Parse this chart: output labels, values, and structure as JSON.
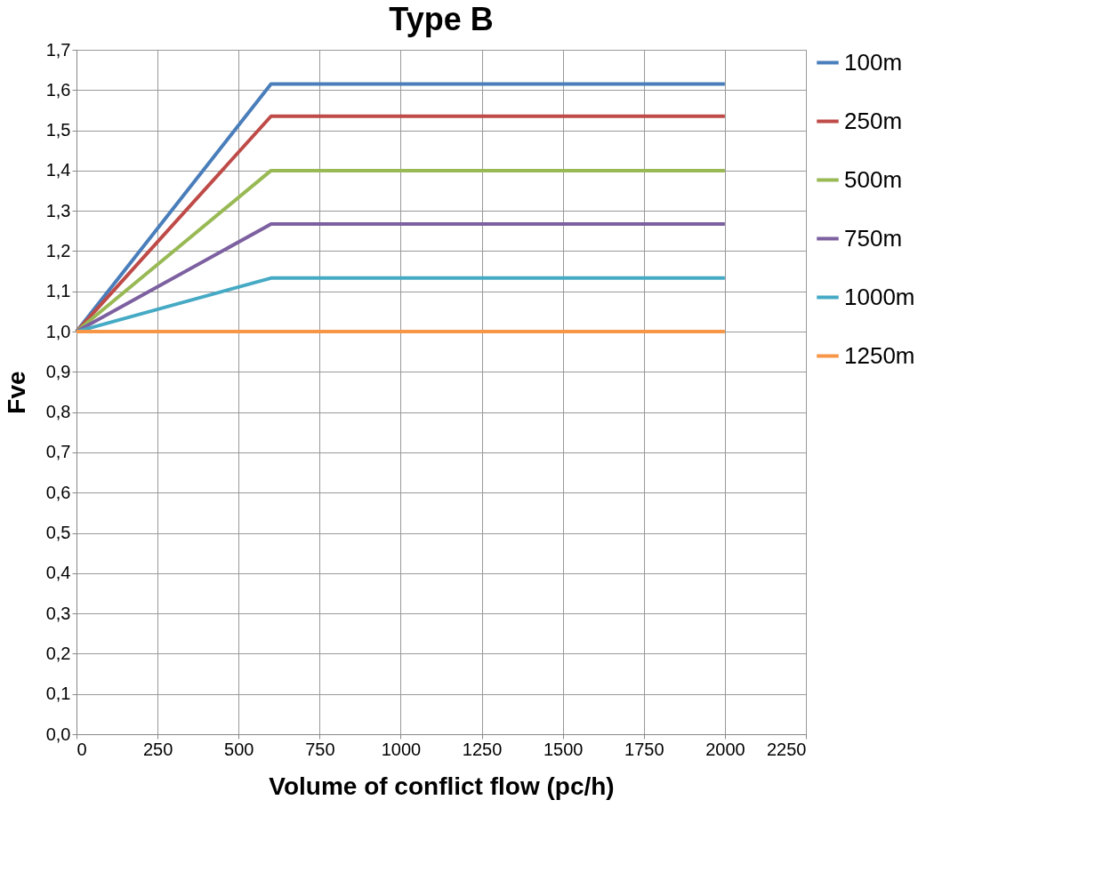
{
  "chart_data": {
    "type": "line",
    "title": "Type B",
    "xlabel": "Volume of conflict flow (pc/h)",
    "ylabel": "Fve",
    "xlim": [
      0,
      2250
    ],
    "xticks": [
      0,
      250,
      500,
      750,
      1000,
      1250,
      1500,
      1750,
      2000,
      2250
    ],
    "ylim": [
      0,
      1.7
    ],
    "yticks": [
      {
        "value": 0,
        "label": "0,0"
      },
      {
        "value": 0.1,
        "label": "0,1"
      },
      {
        "value": 0.2,
        "label": "0,2"
      },
      {
        "value": 0.3,
        "label": "0,3"
      },
      {
        "value": 0.4,
        "label": "0,4"
      },
      {
        "value": 0.5,
        "label": "0,5"
      },
      {
        "value": 0.6,
        "label": "0,6"
      },
      {
        "value": 0.7,
        "label": "0,7"
      },
      {
        "value": 0.8,
        "label": "0,8"
      },
      {
        "value": 0.9,
        "label": "0,9"
      },
      {
        "value": 1.0,
        "label": "1,0"
      },
      {
        "value": 1.1,
        "label": "1,1"
      },
      {
        "value": 1.2,
        "label": "1,2"
      },
      {
        "value": 1.3,
        "label": "1,3"
      },
      {
        "value": 1.4,
        "label": "1,4"
      },
      {
        "value": 1.5,
        "label": "1,5"
      },
      {
        "value": 1.6,
        "label": "1,6"
      },
      {
        "value": 1.7,
        "label": "1,7"
      }
    ],
    "x": [
      0,
      600,
      2000
    ],
    "series": [
      {
        "name": "100m",
        "color": "#4a7ebb",
        "values": [
          1.0,
          1.615,
          1.615
        ]
      },
      {
        "name": "250m",
        "color": "#be4b48",
        "values": [
          1.0,
          1.535,
          1.535
        ]
      },
      {
        "name": "500m",
        "color": "#98b954",
        "values": [
          1.0,
          1.4,
          1.4
        ]
      },
      {
        "name": "750m",
        "color": "#7d60a0",
        "values": [
          1.0,
          1.267,
          1.267
        ]
      },
      {
        "name": "1000m",
        "color": "#46aac5",
        "values": [
          1.0,
          1.133,
          1.133
        ]
      },
      {
        "name": "1250m",
        "color": "#f79646",
        "values": [
          1.0,
          1.0,
          1.0
        ]
      }
    ],
    "grid": true,
    "legend": "right",
    "marker": "none",
    "line_style": "solid"
  }
}
